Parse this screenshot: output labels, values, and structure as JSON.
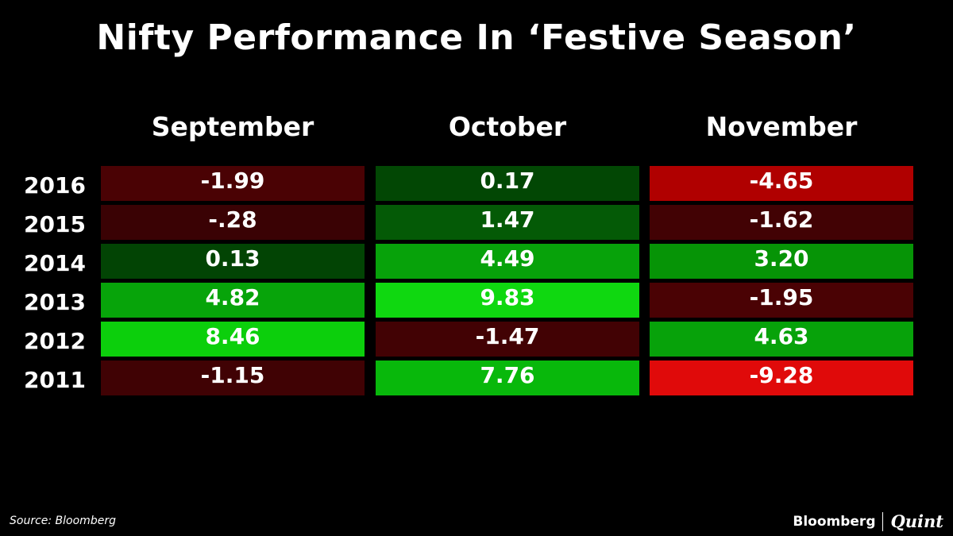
{
  "chart_data": {
    "type": "table",
    "title": "Nifty Performance In ‘Festive Season’",
    "columns": [
      "September",
      "October",
      "November"
    ],
    "rows": [
      {
        "year": "2016",
        "values": [
          "-1.99",
          "0.17",
          "-4.65"
        ],
        "colors": [
          "#4a0204",
          "#024704",
          "#b00000"
        ]
      },
      {
        "year": "2015",
        "values": [
          "-.28",
          "1.47",
          "-1.62"
        ],
        "colors": [
          "#3a0204",
          "#045a06",
          "#420204"
        ]
      },
      {
        "year": "2014",
        "values": [
          "0.13",
          "4.49",
          "3.20"
        ],
        "colors": [
          "#024404",
          "#07a20a",
          "#069406"
        ]
      },
      {
        "year": "2013",
        "values": [
          "4.82",
          "9.83",
          "-1.95"
        ],
        "colors": [
          "#07a40a",
          "#0fd810",
          "#4a0204"
        ]
      },
      {
        "year": "2012",
        "values": [
          "8.46",
          "-1.47",
          "4.63"
        ],
        "colors": [
          "#0ccf0c",
          "#420204",
          "#07a20a"
        ]
      },
      {
        "year": "2011",
        "values": [
          "-1.15",
          "7.76",
          "-9.28"
        ],
        "colors": [
          "#400204",
          "#08b80b",
          "#e00a0a"
        ]
      }
    ]
  },
  "source": "Source: Bloomberg",
  "brand": {
    "bloomberg": "Bloomberg",
    "quint": "Quint"
  }
}
